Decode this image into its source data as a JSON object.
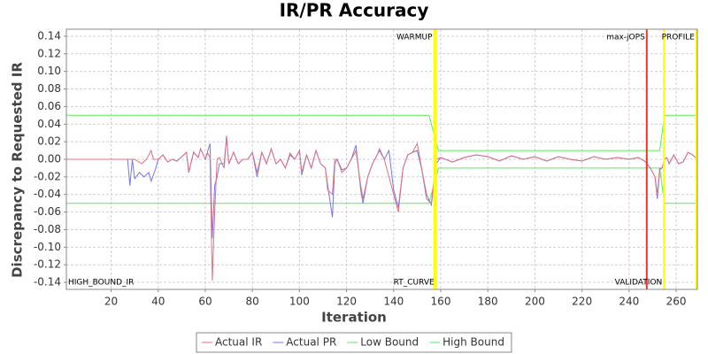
{
  "chart_data": {
    "type": "line",
    "title": "IR/PR Accuracy",
    "x_label": "Iteration",
    "y_label": "Discrepancy to Requested IR",
    "xlim": [
      1,
      269
    ],
    "xticks": [
      20,
      40,
      60,
      80,
      100,
      120,
      140,
      160,
      180,
      200,
      220,
      240,
      260
    ],
    "ylim": [
      -0.148,
      0.148
    ],
    "yticks": [
      {
        "value": -0.14,
        "label": "-0.14"
      },
      {
        "value": -0.12,
        "label": "-0.12"
      },
      {
        "value": -0.1,
        "label": "-0.10"
      },
      {
        "value": -0.08,
        "label": "-0.08"
      },
      {
        "value": -0.06,
        "label": "-0.06"
      },
      {
        "value": -0.04,
        "label": "-0.04"
      },
      {
        "value": -0.02,
        "label": "-0.02"
      },
      {
        "value": 0,
        "label": "0.00"
      },
      0.02,
      0.04,
      0.06,
      0.08,
      {
        "value": 0.1,
        "label": "0.10"
      },
      0.12,
      0.14
    ],
    "grid": true,
    "series": [
      {
        "name": "Actual IR",
        "color": "#e0707f",
        "x": [
          1,
          27,
          30,
          33,
          35,
          37,
          38,
          40,
          42,
          44,
          46,
          48,
          50,
          52,
          53,
          55,
          57,
          58,
          60,
          61,
          62,
          63,
          64,
          65,
          66,
          68,
          69,
          70,
          72,
          74,
          76,
          78,
          80,
          82,
          84,
          86,
          88,
          90,
          92,
          94,
          96,
          98,
          100,
          101,
          103,
          105,
          107,
          109,
          111,
          112,
          114,
          115,
          116,
          118,
          120,
          122,
          124,
          126,
          127,
          129,
          131,
          133,
          134,
          136,
          138,
          140,
          142,
          144,
          146,
          148,
          150,
          152,
          154,
          156,
          158,
          160,
          165,
          170,
          175,
          180,
          185,
          190,
          195,
          200,
          205,
          210,
          215,
          220,
          225,
          230,
          235,
          240,
          244,
          247,
          249,
          251,
          252,
          253,
          254,
          255,
          256,
          257,
          259,
          261,
          263,
          265,
          267,
          269
        ],
        "values": [
          0,
          0,
          0,
          -0.005,
          0,
          0.01,
          0,
          0,
          0.005,
          -0.003,
          0,
          -0.002,
          0.003,
          0.008,
          -0.015,
          0.008,
          0.002,
          0.012,
          0,
          0.007,
          0.002,
          -0.138,
          -0.06,
          0,
          0.002,
          -0.01,
          0.027,
          -0.005,
          0.008,
          -0.005,
          0,
          0,
          0.008,
          -0.015,
          0.008,
          -0.005,
          0.012,
          -0.005,
          0,
          -0.01,
          0.007,
          0,
          0.01,
          -0.015,
          0.005,
          -0.01,
          0.01,
          -0.005,
          -0.01,
          -0.035,
          -0.04,
          0,
          0,
          -0.015,
          -0.01,
          0,
          0.01,
          -0.03,
          -0.045,
          -0.02,
          -0.005,
          0.005,
          0.012,
          0,
          -0.02,
          -0.04,
          -0.06,
          -0.01,
          0.005,
          0.008,
          0.018,
          -0.012,
          -0.045,
          -0.05,
          0,
          0.002,
          -0.003,
          0.002,
          0.005,
          0.003,
          -0.002,
          0.004,
          0,
          0.003,
          -0.002,
          0.003,
          0,
          -0.002,
          0.003,
          0,
          0.002,
          0,
          0.002,
          -0.003,
          -0.01,
          -0.02,
          -0.04,
          -0.01,
          -0.01,
          0,
          0.002,
          -0.005,
          0.005,
          -0.005,
          -0.003,
          0.008,
          0.005,
          0
        ]
      },
      {
        "name": "Actual PR",
        "color": "#7575f0",
        "x": [
          27,
          28,
          29,
          30,
          32,
          34,
          36,
          37,
          39,
          40,
          42,
          44,
          46,
          48,
          50,
          52,
          53,
          55,
          57,
          58,
          60,
          62,
          63,
          64,
          65,
          66,
          68,
          69,
          70,
          72,
          74,
          76,
          78,
          80,
          82,
          84,
          86,
          88,
          90,
          92,
          94,
          96,
          98,
          100,
          101,
          103,
          105,
          107,
          109,
          111,
          112,
          114,
          115,
          116,
          118,
          120,
          122,
          124,
          126,
          127,
          129,
          131,
          133,
          134,
          136,
          138,
          140,
          142,
          144,
          146,
          148,
          150,
          152,
          154,
          156,
          158,
          160,
          165,
          170,
          175,
          180,
          185,
          190,
          195,
          200,
          205,
          210,
          215,
          220,
          225,
          230,
          235,
          240,
          244,
          247,
          249,
          251,
          252,
          253,
          254,
          255,
          256,
          257,
          259,
          261,
          263,
          265,
          267,
          269
        ],
        "values": [
          0,
          -0.03,
          0,
          -0.022,
          -0.015,
          -0.02,
          -0.015,
          -0.025,
          -0.01,
          0,
          0.005,
          -0.003,
          0,
          -0.002,
          0.003,
          0.008,
          -0.015,
          0.008,
          0.002,
          0.012,
          0,
          0.018,
          -0.09,
          -0.03,
          -0.02,
          -0.005,
          -0.005,
          0.025,
          -0.005,
          0.008,
          -0.005,
          0,
          0,
          0.008,
          -0.02,
          0.008,
          -0.005,
          0.012,
          -0.005,
          0,
          -0.01,
          0.005,
          0,
          0.01,
          -0.018,
          0.005,
          -0.01,
          0.01,
          -0.005,
          -0.01,
          -0.03,
          -0.066,
          -0.005,
          0,
          -0.012,
          -0.01,
          0,
          0.016,
          -0.035,
          -0.05,
          -0.02,
          -0.005,
          0.005,
          0.01,
          0,
          0.01,
          -0.035,
          -0.055,
          -0.01,
          0.005,
          0.008,
          0.01,
          -0.012,
          -0.04,
          -0.052,
          -0.005,
          0.002,
          -0.003,
          0.002,
          0.005,
          0.003,
          -0.002,
          0.004,
          0,
          0.003,
          -0.002,
          0.003,
          0,
          -0.002,
          0.003,
          0,
          0.002,
          0,
          0.002,
          -0.003,
          -0.01,
          -0.02,
          -0.045,
          -0.012,
          -0.01,
          0,
          0.002,
          -0.005,
          0.005,
          -0.005,
          -0.003,
          0.008,
          0.005,
          0
        ]
      },
      {
        "name": "Low Bound",
        "color": "#55f055",
        "x": [
          1,
          155,
          159,
          253,
          255,
          269
        ],
        "values": [
          -0.05,
          -0.05,
          -0.01,
          -0.01,
          -0.05,
          -0.05
        ]
      },
      {
        "name": "High Bound",
        "color": "#55f055",
        "x": [
          1,
          155,
          159,
          253,
          255,
          269
        ],
        "values": [
          0.05,
          0.05,
          0.01,
          0.01,
          0.05,
          0.05
        ]
      }
    ],
    "vlines": [
      {
        "x": 157.2,
        "color": "#ffff00"
      },
      {
        "x": 158,
        "color": "#ffff00"
      },
      {
        "x": 247.5,
        "color": "#ee3333"
      },
      {
        "x": 254.8,
        "color": "#ffff00"
      },
      {
        "x": 268.6,
        "color": "#ffff00"
      }
    ],
    "annotations": [
      {
        "text": "WARMUP",
        "x": 157.2,
        "position": "top",
        "anchor": "end"
      },
      {
        "text": "max-jOPS",
        "x": 247.5,
        "position": "top",
        "anchor": "end"
      },
      {
        "text": "PROFILE",
        "x": 268.6,
        "position": "top",
        "anchor": "end"
      },
      {
        "text": "HIGH_BOUND_IR",
        "x": 1,
        "position": "bottom",
        "anchor": "start"
      },
      {
        "text": "RT_CURVE",
        "x": 158,
        "position": "bottom",
        "anchor": "end"
      },
      {
        "text": "VALIDATION",
        "x": 254.8,
        "position": "bottom",
        "anchor": "end"
      }
    ]
  }
}
